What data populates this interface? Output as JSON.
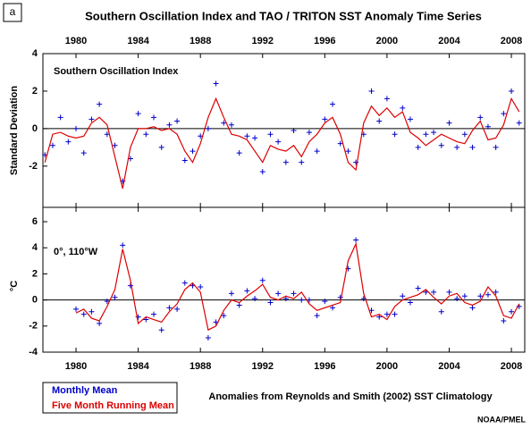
{
  "panel_label": "a",
  "note": "Anomalies from Reynolds and Smith (2002) SST Climatology",
  "credit": "NOAA/PMEL",
  "chart_data": [
    {
      "type": "line",
      "title": "Southern Oscillation Index and TAO / TRITON SST Anomaly Time Series",
      "annotation": "Southern Oscillation Index",
      "y_label": "Standard Deviation",
      "xlim": [
        1977.87,
        2008.86
      ],
      "xticks": [
        1980,
        1984,
        1988,
        1992,
        1996,
        2000,
        2004,
        2008
      ],
      "ylim": [
        -4.2,
        4
      ],
      "yticks": [
        -2,
        0,
        2,
        4
      ],
      "x": [
        1978,
        1978.5,
        1979,
        1979.5,
        1980,
        1980.5,
        1981,
        1981.5,
        1982,
        1982.5,
        1983,
        1983.5,
        1984,
        1984.5,
        1985,
        1985.5,
        1986,
        1986.5,
        1987,
        1987.5,
        1988,
        1988.5,
        1989,
        1989.5,
        1990,
        1990.5,
        1991,
        1991.5,
        1992,
        1992.5,
        1993,
        1993.5,
        1994,
        1994.5,
        1995,
        1995.5,
        1996,
        1996.5,
        1997,
        1997.5,
        1998,
        1998.5,
        1999,
        1999.5,
        2000,
        2000.5,
        2001,
        2001.5,
        2002,
        2002.5,
        2003,
        2003.5,
        2004,
        2004.5,
        2005,
        2005.5,
        2006,
        2006.5,
        2007,
        2007.5,
        2008,
        2008.5
      ],
      "series": [
        {
          "name": "Monthly Mean",
          "color": "#0000cc",
          "marker": "plus",
          "values": [
            -1.4,
            -0.9,
            0.6,
            -0.7,
            0.0,
            -1.3,
            0.5,
            1.3,
            -0.3,
            -0.9,
            -2.8,
            -1.6,
            0.8,
            -0.3,
            0.6,
            -1.0,
            0.2,
            0.4,
            -1.7,
            -1.2,
            -0.4,
            0.0,
            2.4,
            0.3,
            0.2,
            -1.3,
            -0.4,
            -0.5,
            -2.3,
            -0.3,
            -0.7,
            -1.8,
            -0.1,
            -1.8,
            -0.2,
            -1.2,
            0.5,
            1.3,
            -0.8,
            -1.2,
            -1.8,
            -0.3,
            2.0,
            0.4,
            1.6,
            -0.3,
            1.1,
            0.5,
            -1.0,
            -0.3,
            -0.2,
            -0.9,
            0.3,
            -1.0,
            -0.3,
            -1.0,
            0.6,
            0.1,
            -1.0,
            0.8,
            2.0,
            0.3
          ]
        },
        {
          "name": "Five Month Running Mean",
          "color": "#dd0000",
          "marker": "line",
          "values": [
            -1.8,
            -0.3,
            -0.2,
            -0.4,
            -0.5,
            -0.4,
            0.3,
            0.6,
            0.2,
            -1.5,
            -3.2,
            -1.0,
            0.0,
            0.0,
            0.1,
            -0.1,
            0.0,
            -0.3,
            -1.2,
            -1.8,
            -0.8,
            0.6,
            1.6,
            0.6,
            -0.3,
            -0.4,
            -0.6,
            -1.2,
            -1.8,
            -0.9,
            -1.1,
            -1.2,
            -0.9,
            -1.5,
            -0.7,
            -0.3,
            0.3,
            0.6,
            -0.3,
            -1.8,
            -2.2,
            0.3,
            1.2,
            0.7,
            1.1,
            0.6,
            0.9,
            -0.2,
            -0.5,
            -0.9,
            -0.6,
            -0.3,
            -0.5,
            -0.7,
            -0.8,
            -0.1,
            0.4,
            -0.6,
            -0.5,
            0.2,
            1.6,
            0.9
          ]
        }
      ]
    },
    {
      "type": "line",
      "annotation": "0°, 110°W",
      "y_label": "°C",
      "xlim": [
        1977.87,
        2008.86
      ],
      "xticks": [
        1980,
        1984,
        1988,
        1992,
        1996,
        2000,
        2004,
        2008
      ],
      "ylim": [
        -4,
        7.1
      ],
      "yticks": [
        -4,
        -2,
        0,
        2,
        4,
        6
      ],
      "x": [
        1980,
        1980.5,
        1981,
        1981.5,
        1982,
        1982.5,
        1983,
        1983.5,
        1984,
        1984.5,
        1985,
        1985.5,
        1986,
        1986.5,
        1987,
        1987.5,
        1988,
        1988.5,
        1989,
        1989.5,
        1990,
        1990.5,
        1991,
        1991.5,
        1992,
        1992.5,
        1993,
        1993.5,
        1994,
        1994.5,
        1995,
        1995.5,
        1996,
        1996.5,
        1997,
        1997.5,
        1998,
        1998.5,
        1999,
        1999.5,
        2000,
        2000.5,
        2001,
        2001.5,
        2002,
        2002.5,
        2003,
        2003.5,
        2004,
        2004.5,
        2005,
        2005.5,
        2006,
        2006.5,
        2007,
        2007.5,
        2008,
        2008.5
      ],
      "series": [
        {
          "color": "#0000cc",
          "marker": "plus",
          "values": [
            -0.7,
            -1.1,
            -0.9,
            -1.8,
            -0.1,
            0.2,
            4.2,
            1.1,
            -1.3,
            -1.5,
            -1.1,
            -2.3,
            -0.6,
            -0.7,
            1.3,
            1.1,
            1.0,
            -2.9,
            -1.7,
            -1.2,
            0.5,
            -0.4,
            0.7,
            0.1,
            1.5,
            -0.2,
            0.5,
            0.1,
            0.5,
            0.0,
            0.0,
            -1.2,
            -0.1,
            -0.6,
            0.2,
            2.4,
            4.6,
            0.1,
            -0.8,
            -1.3,
            -1.1,
            -1.1,
            0.3,
            -0.2,
            0.9,
            0.6,
            0.6,
            -0.9,
            0.6,
            0.1,
            0.3,
            -0.6,
            0.3,
            0.4,
            0.6,
            -1.6,
            -0.9,
            -0.5
          ]
        },
        {
          "color": "#dd0000",
          "marker": "line",
          "values": [
            -1.0,
            -0.7,
            -1.4,
            -1.6,
            -0.5,
            0.8,
            3.9,
            1.5,
            -1.8,
            -1.3,
            -1.5,
            -1.7,
            -0.9,
            -0.3,
            0.8,
            1.3,
            0.6,
            -2.3,
            -2.0,
            -0.8,
            0.0,
            -0.2,
            0.3,
            0.7,
            1.2,
            0.2,
            0.0,
            0.3,
            0.1,
            0.6,
            -0.3,
            -0.8,
            -0.6,
            -0.4,
            -0.2,
            3.0,
            4.3,
            0.5,
            -1.3,
            -1.1,
            -1.5,
            -0.5,
            0.0,
            0.2,
            0.4,
            0.8,
            0.2,
            -0.3,
            0.3,
            0.5,
            -0.2,
            -0.4,
            -0.1,
            1.0,
            0.3,
            -1.2,
            -1.4,
            -0.3
          ]
        }
      ]
    }
  ]
}
